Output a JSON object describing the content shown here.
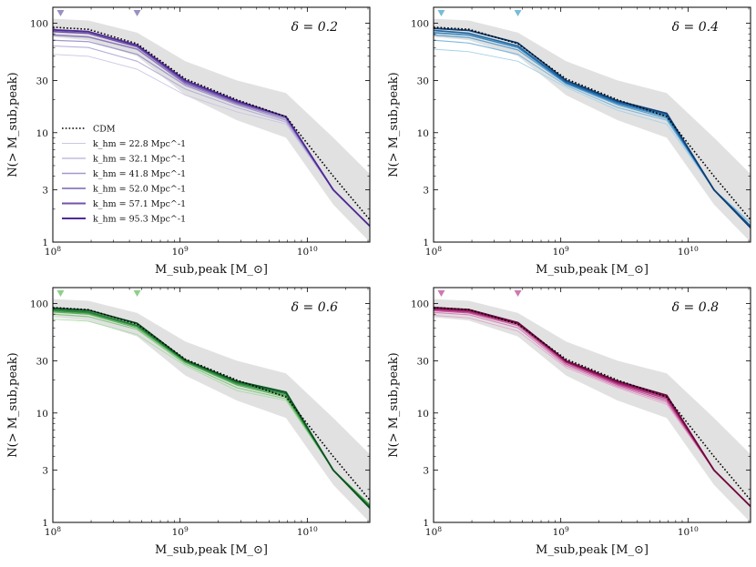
{
  "chart_data": [
    {
      "type": "line",
      "panel_label": "δ = 0.2",
      "xlabel": "M_sub,peak [M_⊙]",
      "ylabel": "N(> M_sub,peak)",
      "xscale": "log",
      "yscale": "log",
      "xlim": [
        100000000.0,
        31000000000.0
      ],
      "ylim": [
        1,
        140
      ],
      "x_tick_labels": [
        "10^8",
        "10^9",
        "10^10"
      ],
      "y_tick_labels": [
        "1",
        "3",
        "10",
        "30",
        "100"
      ],
      "markers_x": [
        115000000.0,
        460000000.0
      ],
      "marker_color": "#9b8fc5",
      "legend_placement": "center-left",
      "cdm_label": "CDM",
      "x": [
        100000000.0,
        190000000.0,
        460000000.0,
        1100000000.0,
        2800000000.0,
        6800000000.0,
        16000000000.0,
        31000000000.0
      ],
      "cdm": [
        92,
        88,
        65,
        31,
        20,
        14,
        4.0,
        1.6
      ],
      "cdm_band_upper": [
        110,
        106,
        82,
        45,
        30,
        23,
        9.0,
        4.2
      ],
      "cdm_band_lower": [
        75,
        70,
        50,
        22,
        13,
        9.0,
        2.2,
        1.0
      ],
      "series": [
        {
          "name": "k_hm = 22.8 Mpc^-1",
          "color": "#cbc5e5",
          "values": [
            52,
            50,
            38,
            22,
            15.5,
            12,
            3.0,
            1.4
          ]
        },
        {
          "name": "k_hm = 32.1 Mpc^-1",
          "color": "#b7aed9",
          "values": [
            62,
            60,
            45,
            25,
            17,
            12.5,
            3.0,
            1.4
          ]
        },
        {
          "name": "k_hm = 41.8 Mpc^-1",
          "color": "#a397cc",
          "values": [
            70,
            68,
            52,
            27,
            18,
            13,
            3.0,
            1.4
          ]
        },
        {
          "name": "k_hm = 52.0 Mpc^-1",
          "color": "#8b79bd",
          "values": [
            78,
            75,
            58,
            28,
            18.5,
            13.5,
            3.0,
            1.4
          ]
        },
        {
          "name": "k_hm = 57.1 Mpc^-1",
          "color": "#7352ab",
          "values": [
            84,
            81,
            61,
            29,
            19,
            14,
            3.0,
            1.4
          ]
        },
        {
          "name": "k_hm = 95.3 Mpc^-1",
          "color": "#4f2a97",
          "values": [
            87,
            84,
            63,
            30,
            19.5,
            14,
            3.0,
            1.4
          ]
        }
      ]
    },
    {
      "type": "line",
      "panel_label": "δ = 0.4",
      "xlabel": "M_sub,peak [M_⊙]",
      "ylabel": "N(> M_sub,peak)",
      "xscale": "log",
      "yscale": "log",
      "xlim": [
        100000000.0,
        31000000000.0
      ],
      "ylim": [
        1,
        140
      ],
      "x_tick_labels": [
        "10^8",
        "10^9",
        "10^10"
      ],
      "y_tick_labels": [
        "1",
        "3",
        "10",
        "30",
        "100"
      ],
      "markers_x": [
        115000000.0,
        460000000.0
      ],
      "marker_color": "#79bcd8",
      "x": [
        100000000.0,
        190000000.0,
        460000000.0,
        1100000000.0,
        2800000000.0,
        6800000000.0,
        16000000000.0,
        31000000000.0
      ],
      "cdm": [
        92,
        88,
        65,
        31,
        20,
        14,
        4.0,
        1.6
      ],
      "cdm_band_upper": [
        110,
        106,
        82,
        45,
        30,
        23,
        9.0,
        4.2
      ],
      "cdm_band_lower": [
        75,
        70,
        50,
        22,
        13,
        9.0,
        2.2,
        1.0
      ],
      "series": [
        {
          "color": "#a6d2e8",
          "values": [
            58,
            55,
            45,
            26,
            16,
            12,
            3.0,
            1.5
          ]
        },
        {
          "color": "#7fb9dd",
          "values": [
            70,
            66,
            52,
            27,
            17,
            13,
            3.0,
            1.5
          ]
        },
        {
          "color": "#5aa1d0",
          "values": [
            78,
            74,
            57,
            28,
            18,
            13.5,
            3.0,
            1.4
          ]
        },
        {
          "color": "#3484bd",
          "values": [
            82,
            78,
            60,
            28.5,
            18.5,
            14,
            3.0,
            1.4
          ]
        },
        {
          "color": "#1f66a3",
          "values": [
            86,
            81,
            62,
            29,
            19,
            14.5,
            3.0,
            1.4
          ]
        },
        {
          "color": "#0f3f74",
          "values": [
            90,
            86,
            66,
            30,
            19.5,
            15,
            3.0,
            1.35
          ]
        }
      ]
    },
    {
      "type": "line",
      "panel_label": "δ = 0.6",
      "xlabel": "M_sub,peak [M_⊙]",
      "ylabel": "N(> M_sub,peak)",
      "xscale": "log",
      "yscale": "log",
      "xlim": [
        100000000.0,
        31000000000.0
      ],
      "ylim": [
        1,
        140
      ],
      "x_tick_labels": [
        "10^8",
        "10^9",
        "10^10"
      ],
      "y_tick_labels": [
        "1",
        "3",
        "10",
        "30",
        "100"
      ],
      "markers_x": [
        115000000.0,
        460000000.0
      ],
      "marker_color": "#8fcf8c",
      "x": [
        100000000.0,
        190000000.0,
        460000000.0,
        1100000000.0,
        2800000000.0,
        6800000000.0,
        16000000000.0,
        31000000000.0
      ],
      "cdm": [
        92,
        88,
        65,
        31,
        20,
        14,
        4.0,
        1.6
      ],
      "cdm_band_upper": [
        110,
        106,
        82,
        45,
        30,
        23,
        9.0,
        4.2
      ],
      "cdm_band_lower": [
        75,
        70,
        50,
        22,
        13,
        9.0,
        2.2,
        1.0
      ],
      "series": [
        {
          "color": "#a7dba2",
          "values": [
            72,
            69,
            52,
            27,
            16,
            13,
            3.0,
            1.45
          ]
        },
        {
          "color": "#83c97e",
          "values": [
            80,
            76,
            58,
            28,
            17,
            13.5,
            3.0,
            1.45
          ]
        },
        {
          "color": "#5cb25c",
          "values": [
            84,
            80,
            60,
            29,
            18,
            14,
            3.0,
            1.45
          ]
        },
        {
          "color": "#3a9a48",
          "values": [
            86,
            82,
            62,
            29.5,
            18.5,
            14.5,
            3.0,
            1.4
          ]
        },
        {
          "color": "#237d36",
          "values": [
            88,
            84,
            63,
            30,
            19,
            15,
            3.0,
            1.4
          ]
        },
        {
          "color": "#0d5224",
          "values": [
            91,
            87,
            66,
            30.5,
            19.5,
            15.5,
            3.0,
            1.35
          ]
        }
      ]
    },
    {
      "type": "line",
      "panel_label": "δ = 0.8",
      "xlabel": "M_sub,peak [M_⊙]",
      "ylabel": "N(> M_sub,peak)",
      "xscale": "log",
      "yscale": "log",
      "xlim": [
        100000000.0,
        31000000000.0
      ],
      "ylim": [
        1,
        140
      ],
      "x_tick_labels": [
        "10^8",
        "10^9",
        "10^10"
      ],
      "y_tick_labels": [
        "1",
        "3",
        "10",
        "30",
        "100"
      ],
      "markers_x": [
        115000000.0,
        460000000.0
      ],
      "marker_color": "#cc79b4",
      "x": [
        100000000.0,
        190000000.0,
        460000000.0,
        1100000000.0,
        2800000000.0,
        6800000000.0,
        16000000000.0,
        31000000000.0
      ],
      "cdm": [
        92,
        88,
        65,
        31,
        20,
        14,
        4.0,
        1.6
      ],
      "cdm_band_upper": [
        110,
        106,
        82,
        45,
        30,
        23,
        9.0,
        4.2
      ],
      "cdm_band_lower": [
        75,
        70,
        50,
        22,
        13,
        9.0,
        2.2,
        1.0
      ],
      "series": [
        {
          "color": "#e3a8cc",
          "values": [
            78,
            74,
            56,
            26,
            17,
            12,
            3.0,
            1.4
          ]
        },
        {
          "color": "#d884b9",
          "values": [
            83,
            79,
            60,
            27,
            17.5,
            12.5,
            3.0,
            1.4
          ]
        },
        {
          "color": "#c95a9f",
          "values": [
            86,
            82,
            63,
            28,
            18,
            13,
            3.0,
            1.4
          ]
        },
        {
          "color": "#b23581",
          "values": [
            88,
            84,
            65,
            29,
            18.5,
            13.5,
            3.0,
            1.4
          ]
        },
        {
          "color": "#961a62",
          "values": [
            90,
            86,
            66,
            29.5,
            19,
            14,
            3.0,
            1.4
          ]
        },
        {
          "color": "#6e0a3e",
          "values": [
            92,
            88,
            67,
            30,
            19.5,
            14.5,
            3.0,
            1.4
          ]
        }
      ]
    }
  ]
}
